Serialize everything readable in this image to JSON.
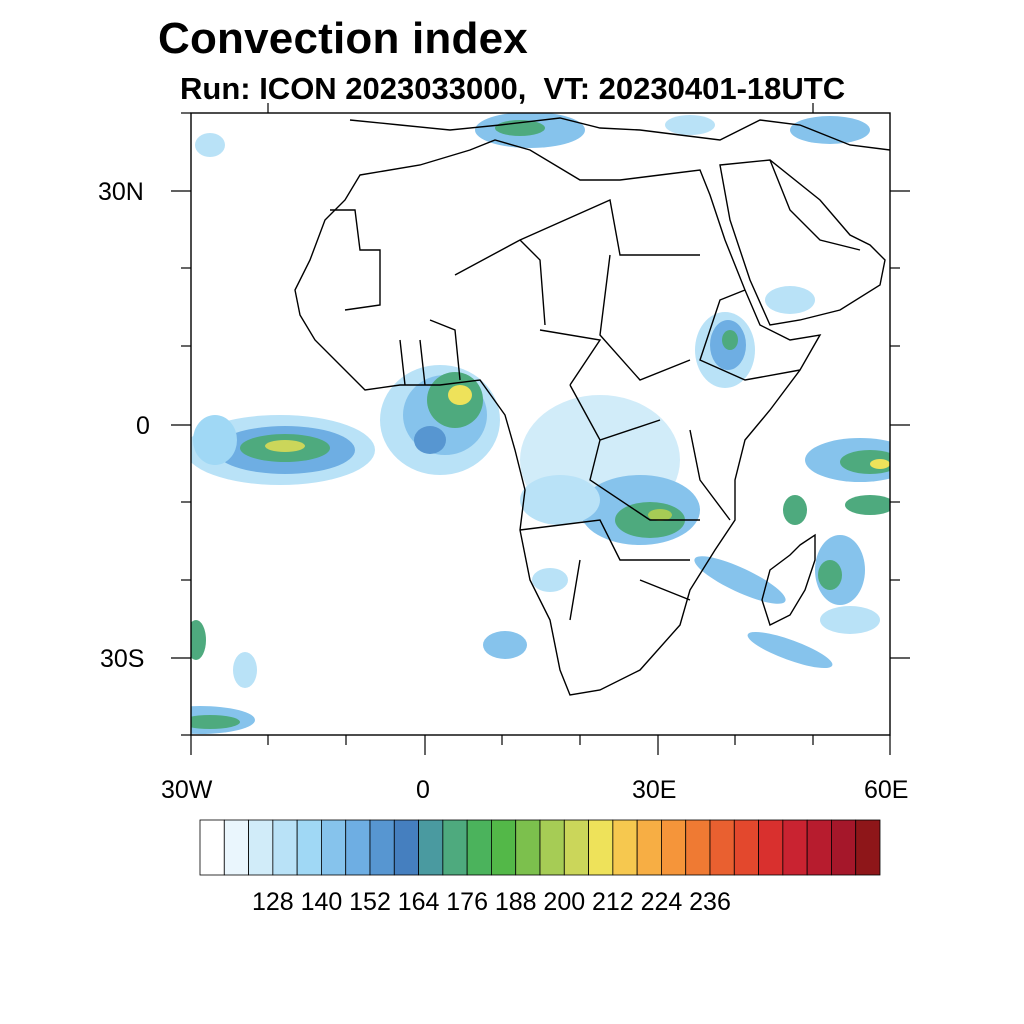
{
  "title": "Convection index",
  "subtitle": "Run: ICON 2023033000,  VT: 20230401-18UTC",
  "lat_labels": [
    "30N",
    "0",
    "30S"
  ],
  "lon_labels": [
    "30W",
    "0",
    "30E",
    "60E"
  ],
  "colorbar": {
    "labels": [
      "128",
      "140",
      "152",
      "164",
      "176",
      "188",
      "200",
      "212",
      "224",
      "236"
    ],
    "colors": [
      "#ffffff",
      "#eaf6fd",
      "#d1ecf9",
      "#b9e2f7",
      "#a0d8f5",
      "#86c3ec",
      "#6eaee3",
      "#5796d1",
      "#457fbf",
      "#4a9aa0",
      "#4eaa7e",
      "#4bb35c",
      "#53b848",
      "#7cc04d",
      "#a6cc55",
      "#cbd65a",
      "#eee25a",
      "#f6c84f",
      "#f7ae44",
      "#f5953a",
      "#ef7a33",
      "#e96030",
      "#e3482d",
      "#d9302e",
      "#c92331",
      "#b71c2e",
      "#a5172a",
      "#8e1619"
    ]
  },
  "map": {
    "lon_range": [
      -30,
      60
    ],
    "lat_range": [
      -40,
      40
    ],
    "coastline_color": "#000000",
    "field": "Convection index",
    "units": ""
  }
}
